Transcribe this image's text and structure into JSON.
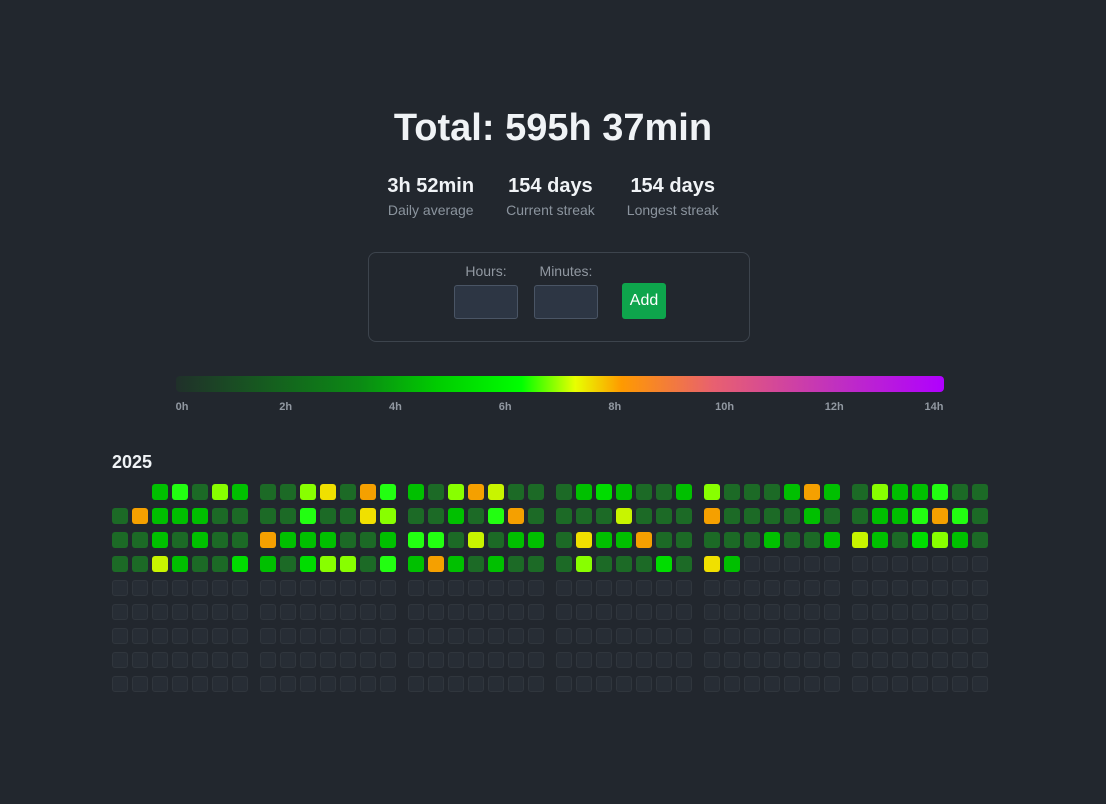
{
  "summary": {
    "total": "Total: 595h 37min",
    "stats": [
      {
        "value": "3h 52min",
        "label": "Daily average"
      },
      {
        "value": "154 days",
        "label": "Current streak"
      },
      {
        "value": "154 days",
        "label": "Longest streak"
      }
    ]
  },
  "form": {
    "hours_label": "Hours:",
    "minutes_label": "Minutes:",
    "hours_value": "",
    "minutes_value": "",
    "add_label": "Add"
  },
  "legend": {
    "ticks": [
      "0h",
      "2h",
      "4h",
      "6h",
      "8h",
      "10h",
      "12h",
      "14h"
    ],
    "min_hours": 0,
    "max_hours": 14,
    "colors": {
      "low": "#1f6f2b",
      "mid": "#00cc00",
      "bright": "#00ff22",
      "yellow_green": "#99ff00",
      "yellow": "#e8f000",
      "orange": "#f5a000",
      "magenta": "#cc30cc",
      "violet": "#b000ff",
      "empty": "#272d35"
    }
  },
  "calendar": {
    "year": "2025",
    "palette": {
      "a": "#1c6a26",
      "b": "#0b8a14",
      "c": "#00c000",
      "d": "#00dd00",
      "e": "#22ff11",
      "f": "#88ff00",
      "g": "#c8f500",
      "h": "#f0e000",
      "o": "#f5a000"
    },
    "months": [
      {
        "weeks": [
          [
            null,
            "a",
            "a",
            "a",
            0,
            0,
            0,
            0,
            0
          ],
          [
            null,
            "o",
            "a",
            "a",
            0,
            0,
            0,
            0,
            0
          ],
          [
            "c",
            "c",
            "c",
            "g",
            0,
            0,
            0,
            0,
            0
          ],
          [
            "e",
            "c",
            "a",
            "c",
            0,
            0,
            0,
            0,
            0
          ],
          [
            "a",
            "c",
            "c",
            "a",
            0,
            0,
            0,
            0,
            0
          ],
          [
            "f",
            "a",
            "a",
            "a",
            0,
            0,
            0,
            0,
            0
          ],
          [
            "c",
            "a",
            "a",
            "d",
            0,
            0,
            0,
            0,
            0
          ]
        ]
      },
      {
        "weeks": [
          [
            "a",
            "a",
            "o",
            "c",
            0,
            0,
            0,
            0,
            0
          ],
          [
            "a",
            "a",
            "c",
            "a",
            0,
            0,
            0,
            0,
            0
          ],
          [
            "f",
            "e",
            "c",
            "d",
            0,
            0,
            0,
            0,
            0
          ],
          [
            "h",
            "a",
            "c",
            "f",
            0,
            0,
            0,
            0,
            0
          ],
          [
            "a",
            "a",
            "a",
            "f",
            0,
            0,
            0,
            0,
            0
          ],
          [
            "o",
            "h",
            "a",
            "a",
            0,
            0,
            0,
            0,
            0
          ],
          [
            "e",
            "f",
            "c",
            "e",
            0,
            0,
            0,
            0,
            0
          ]
        ]
      },
      {
        "weeks": [
          [
            "c",
            "a",
            "e",
            "c",
            0,
            0,
            0,
            0,
            0
          ],
          [
            "a",
            "a",
            "e",
            "o",
            0,
            0,
            0,
            0,
            0
          ],
          [
            "f",
            "c",
            "a",
            "c",
            0,
            0,
            0,
            0,
            0
          ],
          [
            "o",
            "a",
            "g",
            "a",
            0,
            0,
            0,
            0,
            0
          ],
          [
            "g",
            "e",
            "a",
            "c",
            0,
            0,
            0,
            0,
            0
          ],
          [
            "a",
            "o",
            "c",
            "a",
            0,
            0,
            0,
            0,
            0
          ],
          [
            "a",
            "a",
            "c",
            "a",
            0,
            0,
            0,
            0,
            0
          ]
        ]
      },
      {
        "weeks": [
          [
            "a",
            "a",
            "a",
            "a",
            0,
            0,
            0,
            0,
            0
          ],
          [
            "c",
            "a",
            "h",
            "f",
            0,
            0,
            0,
            0,
            0
          ],
          [
            "d",
            "a",
            "c",
            "a",
            0,
            0,
            0,
            0,
            0
          ],
          [
            "c",
            "g",
            "c",
            "a",
            0,
            0,
            0,
            0,
            0
          ],
          [
            "a",
            "a",
            "o",
            "a",
            0,
            0,
            0,
            0,
            0
          ],
          [
            "a",
            "a",
            "a",
            "d",
            0,
            0,
            0,
            0,
            0
          ],
          [
            "c",
            "a",
            "a",
            "a",
            0,
            0,
            0,
            0,
            0
          ]
        ]
      },
      {
        "weeks": [
          [
            "f",
            "o",
            "a",
            "h",
            0,
            0,
            0,
            0,
            0
          ],
          [
            "a",
            "a",
            "a",
            "c",
            0,
            0,
            0,
            0,
            0
          ],
          [
            "a",
            "a",
            "a",
            0,
            0,
            0,
            0,
            0,
            0
          ],
          [
            "a",
            "a",
            "c",
            0,
            0,
            0,
            0,
            0,
            0
          ],
          [
            "c",
            "a",
            "a",
            0,
            0,
            0,
            0,
            0,
            0
          ],
          [
            "o",
            "c",
            "a",
            0,
            0,
            0,
            0,
            0,
            0
          ],
          [
            "c",
            "a",
            "c",
            0,
            0,
            0,
            0,
            0,
            0
          ]
        ]
      },
      {
        "weeks": [
          [
            "a",
            "a",
            "g",
            0,
            0,
            0,
            0,
            0,
            0
          ],
          [
            "f",
            "c",
            "c",
            0,
            0,
            0,
            0,
            0,
            0
          ],
          [
            "c",
            "c",
            "a",
            0,
            0,
            0,
            0,
            0,
            0
          ],
          [
            "c",
            "e",
            "d",
            0,
            0,
            0,
            0,
            0,
            0
          ],
          [
            "e",
            "o",
            "f",
            0,
            0,
            0,
            0,
            0,
            0
          ],
          [
            "a",
            "e",
            "c",
            0,
            0,
            0,
            0,
            0,
            0
          ],
          [
            "a",
            "a",
            "a",
            0,
            0,
            0,
            0,
            0,
            0
          ]
        ]
      }
    ]
  }
}
